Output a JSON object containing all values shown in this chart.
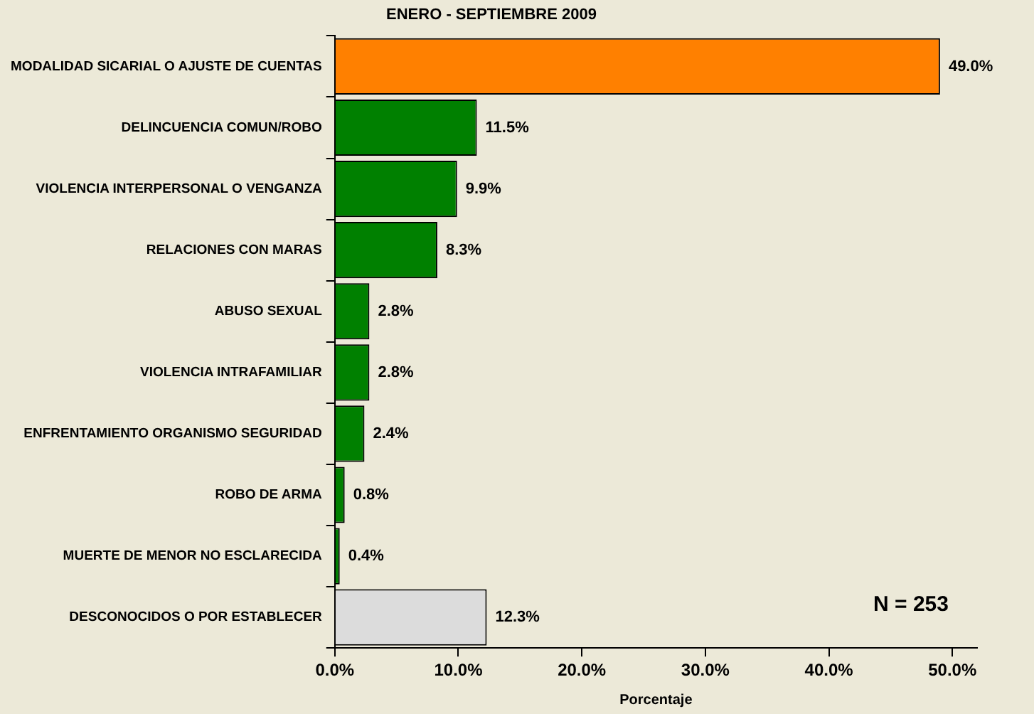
{
  "chart_data": {
    "type": "bar",
    "orientation": "horizontal",
    "title": "ENERO - SEPTIEMBRE 2009",
    "xlabel": "Porcentaje",
    "categories": [
      "MODALIDAD SICARIAL O AJUSTE DE CUENTAS",
      "DELINCUENCIA COMUN/ROBO",
      "VIOLENCIA INTERPERSONAL O VENGANZA",
      "RELACIONES CON MARAS",
      "ABUSO SEXUAL",
      "VIOLENCIA INTRAFAMILIAR",
      "ENFRENTAMIENTO ORGANISMO SEGURIDAD",
      "ROBO DE ARMA",
      "MUERTE DE MENOR NO ESCLARECIDA",
      "DESCONOCIDOS O POR ESTABLECER"
    ],
    "values": [
      49.0,
      11.5,
      9.9,
      8.3,
      2.8,
      2.8,
      2.4,
      0.8,
      0.4,
      12.3
    ],
    "colors": [
      "#ff8000",
      "#008000",
      "#008000",
      "#008000",
      "#008000",
      "#008000",
      "#008000",
      "#008000",
      "#008000",
      "#dcdcdc"
    ],
    "value_labels": [
      "49.0%",
      "11.5%",
      "9.9%",
      "8.3%",
      "2.8%",
      "2.8%",
      "2.4%",
      "0.8%",
      "0.4%",
      "12.3%"
    ],
    "xlim": [
      0,
      52
    ],
    "xticks": [
      {
        "value": 0,
        "label": "0.0%"
      },
      {
        "value": 10,
        "label": "10.0%"
      },
      {
        "value": 20,
        "label": "20.0%"
      },
      {
        "value": 30,
        "label": "30.0%"
      },
      {
        "value": 40,
        "label": "40.0%"
      },
      {
        "value": 50,
        "label": "50.0%"
      }
    ],
    "annotations": [
      "N = 253"
    ],
    "grid": false,
    "legend": false
  }
}
